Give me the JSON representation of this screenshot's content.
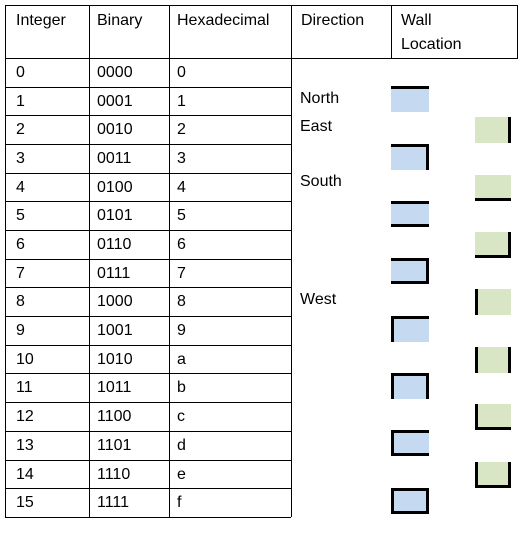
{
  "table": {
    "headers": {
      "integer": "Integer",
      "binary": "Binary",
      "hexadecimal": "Hexadecimal",
      "direction": "Direction",
      "wall_location_line1": "Wall",
      "wall_location_line2": "Location"
    },
    "rows": [
      {
        "integer": "0",
        "binary": "0000",
        "hex": "0"
      },
      {
        "integer": "1",
        "binary": "0001",
        "hex": "1"
      },
      {
        "integer": "2",
        "binary": "0010",
        "hex": "2"
      },
      {
        "integer": "3",
        "binary": "0011",
        "hex": "3"
      },
      {
        "integer": "4",
        "binary": "0100",
        "hex": "4"
      },
      {
        "integer": "5",
        "binary": "0101",
        "hex": "5"
      },
      {
        "integer": "6",
        "binary": "0110",
        "hex": "6"
      },
      {
        "integer": "7",
        "binary": "0111",
        "hex": "7"
      },
      {
        "integer": "8",
        "binary": "1000",
        "hex": "8"
      },
      {
        "integer": "9",
        "binary": "1001",
        "hex": "9"
      },
      {
        "integer": "10",
        "binary": "1010",
        "hex": "a"
      },
      {
        "integer": "11",
        "binary": "1011",
        "hex": "b"
      },
      {
        "integer": "12",
        "binary": "1100",
        "hex": "c"
      },
      {
        "integer": "13",
        "binary": "1101",
        "hex": "d"
      },
      {
        "integer": "14",
        "binary": "1110",
        "hex": "e"
      },
      {
        "integer": "15",
        "binary": "1111",
        "hex": "f"
      }
    ]
  },
  "directions": {
    "north": "North",
    "east": "East",
    "south": "South",
    "west": "West"
  },
  "wall_icons": {
    "colors": {
      "blue": "#c5d9f0",
      "green": "#d8e6c6",
      "wall": "#000000"
    },
    "items": [
      {
        "value": 1,
        "walls": [
          "north"
        ],
        "color": "blue"
      },
      {
        "value": 2,
        "walls": [
          "east"
        ],
        "color": "green"
      },
      {
        "value": 3,
        "walls": [
          "north",
          "east"
        ],
        "color": "blue"
      },
      {
        "value": 4,
        "walls": [
          "south"
        ],
        "color": "green"
      },
      {
        "value": 5,
        "walls": [
          "north",
          "south"
        ],
        "color": "blue"
      },
      {
        "value": 6,
        "walls": [
          "east",
          "south"
        ],
        "color": "green"
      },
      {
        "value": 7,
        "walls": [
          "north",
          "east",
          "south"
        ],
        "color": "blue"
      },
      {
        "value": 8,
        "walls": [
          "west"
        ],
        "color": "green"
      },
      {
        "value": 9,
        "walls": [
          "north",
          "west"
        ],
        "color": "blue"
      },
      {
        "value": 10,
        "walls": [
          "east",
          "west"
        ],
        "color": "green"
      },
      {
        "value": 11,
        "walls": [
          "north",
          "east",
          "west"
        ],
        "color": "blue"
      },
      {
        "value": 12,
        "walls": [
          "south",
          "west"
        ],
        "color": "green"
      },
      {
        "value": 13,
        "walls": [
          "north",
          "south",
          "west"
        ],
        "color": "blue"
      },
      {
        "value": 14,
        "walls": [
          "east",
          "south",
          "west"
        ],
        "color": "green"
      },
      {
        "value": 15,
        "walls": [
          "north",
          "east",
          "south",
          "west"
        ],
        "color": "blue"
      }
    ]
  }
}
